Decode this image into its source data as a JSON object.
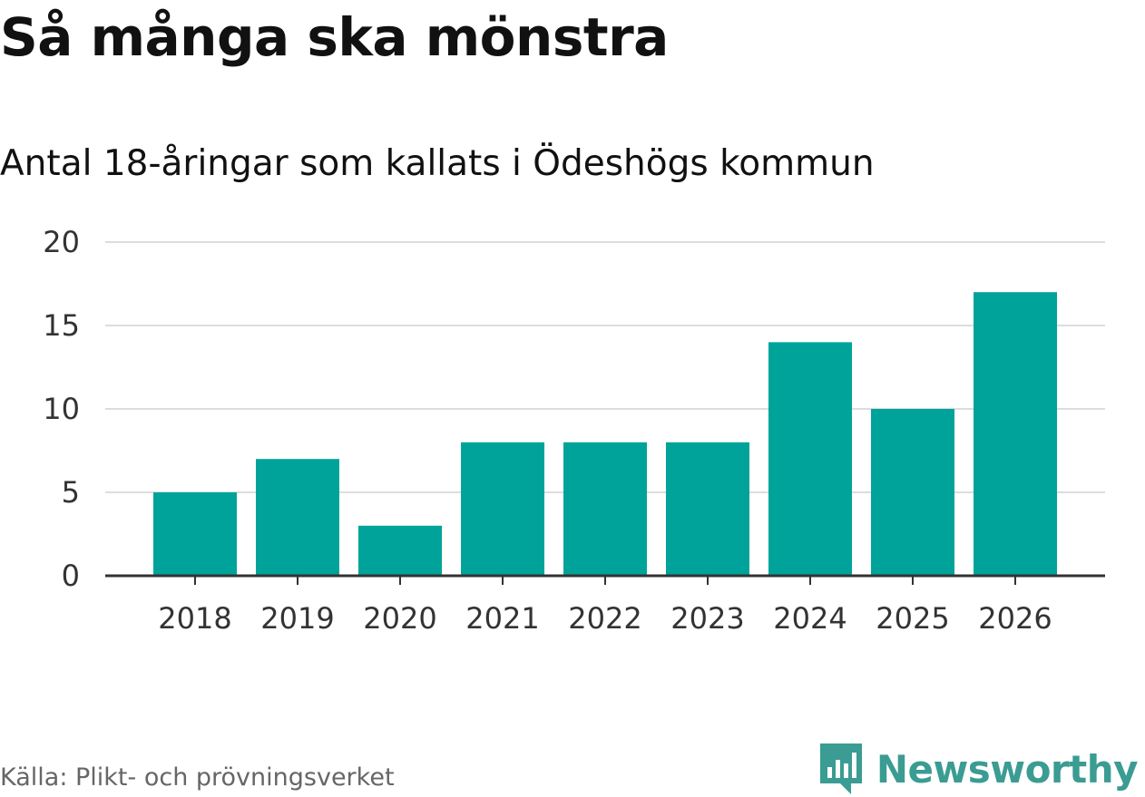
{
  "header": {
    "title": "Så många ska mönstra",
    "subtitle": "Antal 18-åringar som kallats i Ödeshögs kommun"
  },
  "footer": {
    "source": "Källa: Plikt- och prövningsverket",
    "brand": "Newsworthy",
    "brand_color": "#3a9c92"
  },
  "chart_data": {
    "type": "bar",
    "title": "Så många ska mönstra",
    "subtitle": "Antal 18-åringar som kallats i Ödeshögs kommun",
    "categories": [
      "2018",
      "2019",
      "2020",
      "2021",
      "2022",
      "2023",
      "2024",
      "2025",
      "2026"
    ],
    "values": [
      5,
      7,
      3,
      8,
      8,
      8,
      14,
      10,
      17
    ],
    "xlabel": "",
    "ylabel": "",
    "ylim": [
      0,
      20
    ],
    "yticks": [
      0,
      5,
      10,
      15,
      20
    ],
    "grid": true,
    "bar_color": "#00a39a",
    "grid_color": "#dddddd",
    "axis_color": "#333333"
  }
}
